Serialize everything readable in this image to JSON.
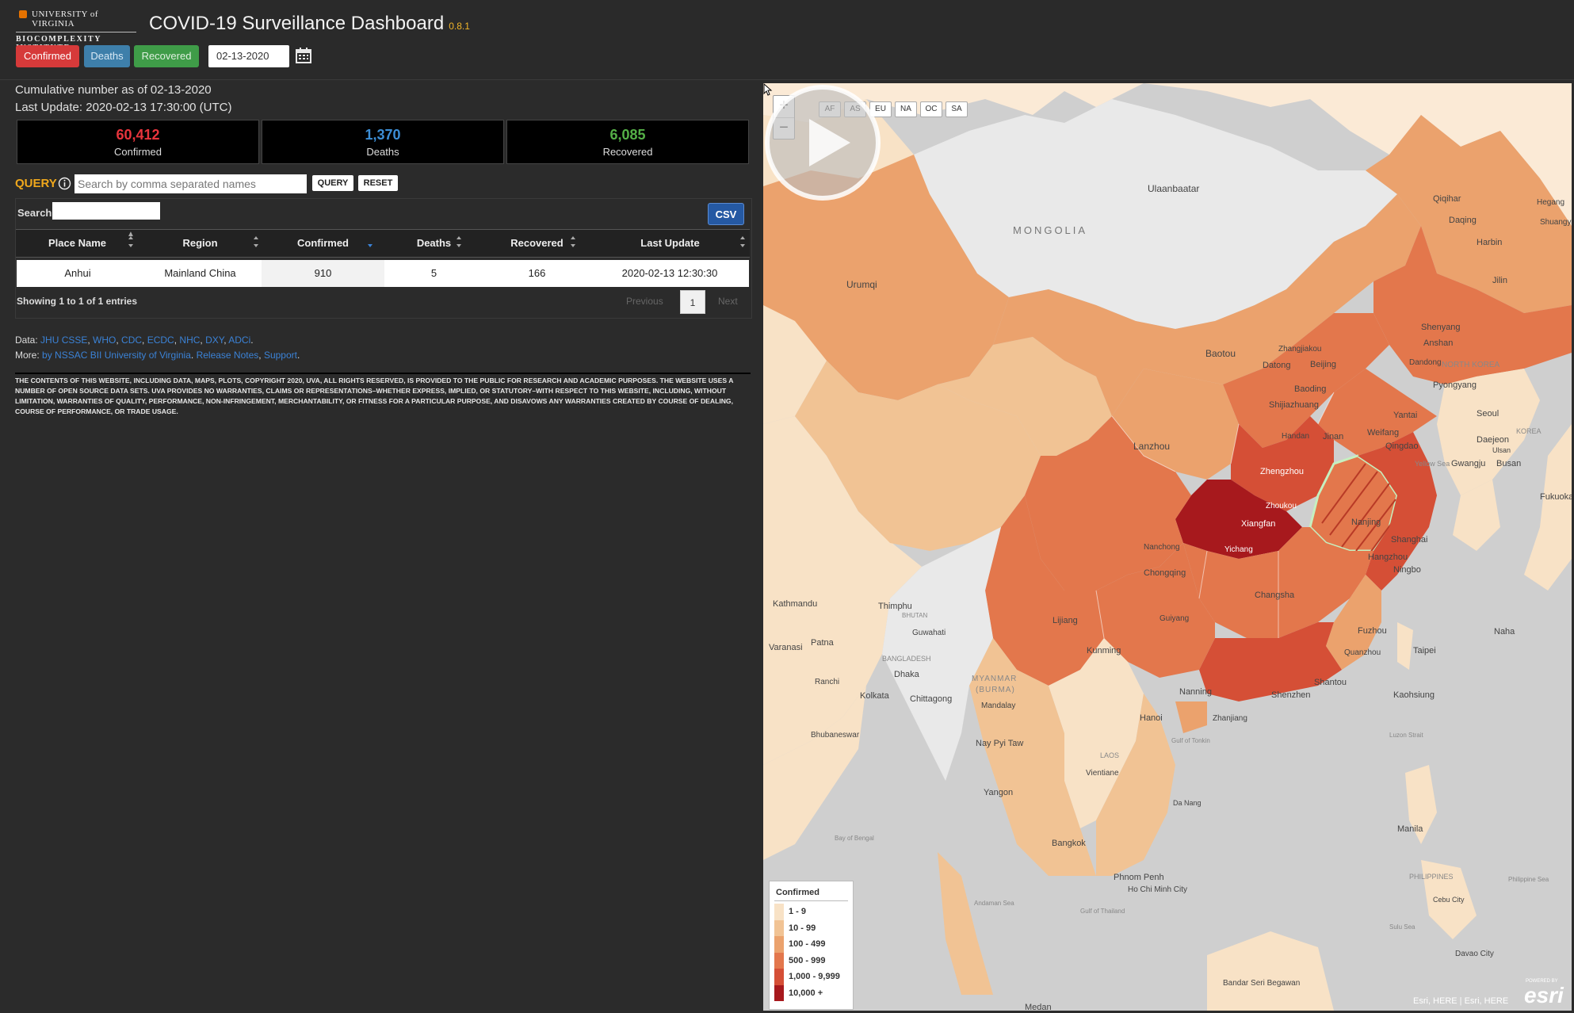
{
  "header": {
    "logo_line1": "UNIVERSITY of VIRGINIA",
    "logo_line2": "BIOCOMPLEXITY INSTITUTE",
    "title": "COVID-19 Surveillance Dashboard",
    "version": "0.8.1",
    "buttons": {
      "confirmed": "Confirmed",
      "deaths": "Deaths",
      "recovered": "Recovered"
    },
    "date": "02-13-2020",
    "calendar_icon": "calendar-icon"
  },
  "summary": {
    "cumulative": "Cumulative number as of 02-13-2020",
    "last_update": "Last Update: 2020-02-13 17:30:00 (UTC)",
    "confirmed": {
      "value": "60,412",
      "label": "Confirmed",
      "color": "#e8343c"
    },
    "deaths": {
      "value": "1,370",
      "label": "Deaths",
      "color": "#3c8ed6"
    },
    "recovered": {
      "value": "6,085",
      "label": "Recovered",
      "color": "#55b047"
    }
  },
  "query": {
    "label": "QUERY",
    "placeholder": "Search by comma separated names",
    "query_button": "QUERY",
    "reset_button": "RESET"
  },
  "table": {
    "search_label": "Search:",
    "csv_button": "CSV",
    "columns": [
      "Place Name",
      "Region",
      "Confirmed",
      "Deaths",
      "Recovered",
      "Last Update"
    ],
    "rows": [
      {
        "place": "Anhui",
        "region": "Mainland China",
        "confirmed": "910",
        "deaths": "5",
        "recovered": "166",
        "last_update": "2020-02-13 12:30:30"
      }
    ],
    "showing": "Showing 1 to 1 of 1 entries",
    "previous": "Previous",
    "page": "1",
    "next": "Next"
  },
  "footer": {
    "data_prefix": "Data:",
    "data_links": [
      "JHU CSSE",
      "WHO",
      "CDC",
      "ECDC",
      "NHC",
      "DXY",
      "ADCi"
    ],
    "more_prefix": "More:",
    "more_links": [
      "by NSSAC BII University of Virginia",
      "Release Notes",
      "Support"
    ],
    "disclaimer": "The contents of this website, including data, maps, plots, copyright 2020, UVA, all rights reserved, is provided to the public for research and academic purposes. The website uses a number of open source data sets. UVA provides no warranties, claims or representations–whether express, implied, or statutory–with respect to this website, including, without limitation, warranties of quality, performance, non-infringement, merchantability, or fitness for a particular purpose, and disavows any warranties created by course of dealing, course of performance, or trade usage."
  },
  "map": {
    "zoom_in": "+",
    "zoom_out": "−",
    "regions": [
      "AF",
      "AS",
      "EU",
      "NA",
      "OC",
      "SA"
    ],
    "labels": {
      "mongolia": "MONGOLIA",
      "ulaanbaatar": "Ulaanbaatar",
      "urumqi": "Urumqi",
      "baotou": "Baotou",
      "lanzhou": "Lanzhou",
      "zhangjiakou": "Zhangjiakou",
      "beijing": "Beijing",
      "datong": "Datong",
      "baoding": "Baoding",
      "shijiazhuang": "Shijiazhuang",
      "qiqihar": "Qiqihar",
      "daqing": "Daqing",
      "harbin": "Harbin",
      "hegang": "Hegang",
      "shuangyashan": "Shuangya",
      "jilin": "Jilin",
      "shenyang": "Shenyang",
      "anshan": "Anshan",
      "dandong": "Dandong",
      "north_korea": "NORTH KOREA",
      "pyongyang": "Pyongyang",
      "seoul": "Seoul",
      "daejeon": "Daejeon",
      "gwangju": "Gwangju",
      "busan": "Busan",
      "fukuoka": "Fukuoka",
      "ulsan": "Ulsan",
      "korea": "KOREA",
      "yellow_sea": "Yellow Sea",
      "yantai": "Yantai",
      "weifang": "Weifang",
      "qingdao": "Qingdao",
      "jinan": "Jinan",
      "handan": "Handan",
      "zhengzhou": "Zhengzhou",
      "zhoukou": "Zhoukou",
      "xiangfan": "Xiangfan",
      "yichang": "Yichang",
      "nanjing": "Nanjing",
      "shanghai": "Shanghai",
      "hangzhou": "Hangzhou",
      "ningbo": "Ningbo",
      "nanchong": "Nanchong",
      "chongqing": "Chongqing",
      "changsha": "Changsha",
      "guiyang": "Guiyang",
      "fuzhou": "Fuzhou",
      "taipei": "Taipei",
      "quanzhou": "Quanzhou",
      "kaohsiung": "Kaohsiung",
      "naha": "Naha",
      "shantou": "Shantou",
      "shenzhen": "Shenzhen",
      "zhanjiang": "Zhanjiang",
      "nanning": "Nanning",
      "kunming": "Kunming",
      "lijiang": "Lijiang",
      "kathmandu": "Kathmandu",
      "thimphu": "Thimphu",
      "bhutan": "BHUTAN",
      "guwahati": "Guwahati",
      "varanasi": "Varanasi",
      "patna": "Patna",
      "bangladesh": "BANGLADESH",
      "dhaka": "Dhaka",
      "ranchi": "Ranchi",
      "kolkata": "Kolkata",
      "chittagong": "Chittagong",
      "bhubaneswar": "Bhubaneswar",
      "myanmar": "MYANMAR",
      "burma": "(BURMA)",
      "mandalay": "Mandalay",
      "nay_pyi_taw": "Nay Pyi Taw",
      "yangon": "Yangon",
      "hanoi": "Hanoi",
      "gulf_tonkin": "Gulf of Tonkin",
      "laos": "LAOS",
      "vientiane": "Vientiane",
      "da_nang": "Da Nang",
      "bangkok": "Bangkok",
      "phnom_penh": "Phnom Penh",
      "ho_chi_minh": "Ho Chi Minh City",
      "bay_of_bengal": "Bay of Bengal",
      "andaman_sea": "Andaman Sea",
      "gulf_thailand": "Gulf of Thailand",
      "manila": "Manila",
      "philippines": "PHILIPPINES",
      "philippine_sea": "Philippine Sea",
      "cebu": "Cebu City",
      "sulu_sea": "Sulu Sea",
      "davao": "Davao City",
      "bandar": "Bandar Seri Begawan",
      "medan": "Medan",
      "luzon": "Luzon Strait"
    },
    "legend": {
      "title": "Confirmed",
      "bins": [
        {
          "label": "1 - 9",
          "color": "#f8e2c6"
        },
        {
          "label": "10 - 99",
          "color": "#f1c394"
        },
        {
          "label": "100 - 499",
          "color": "#eba26d"
        },
        {
          "label": "500 - 999",
          "color": "#e3774c"
        },
        {
          "label": "1,000 - 9,999",
          "color": "#d54f36"
        },
        {
          "label": "10,000 +",
          "color": "#a7191d"
        }
      ]
    },
    "attribution": "Esri, HERE | Esri, HERE",
    "powered_by": "POWERED BY",
    "esri_logo": "esri",
    "play_icon": "play-icon"
  }
}
